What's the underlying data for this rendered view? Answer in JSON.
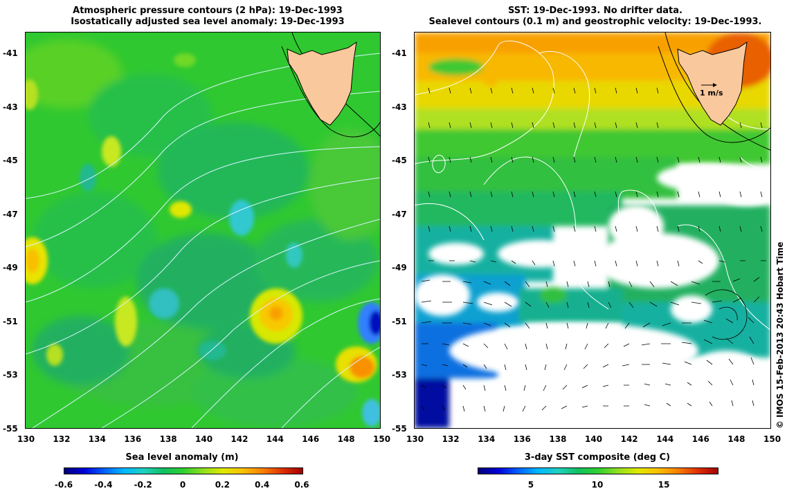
{
  "left_map": {
    "title_line1": "Atmospheric pressure contours (2 hPa): 19-Dec-1993",
    "title_line2": "Isostatically adjusted sea level anomaly: 19-Dec-1993",
    "x_ticks": [
      "130",
      "132",
      "134",
      "136",
      "138",
      "140",
      "142",
      "144",
      "146",
      "148",
      "150"
    ],
    "y_ticks": [
      "-41",
      "-43",
      "-45",
      "-47",
      "-49",
      "-51",
      "-53",
      "-55"
    ],
    "colorbar_label": "Sea level anomaly (m)",
    "colorbar_ticks": [
      "-0.6",
      "-0.4",
      "-0.2",
      "0",
      "0.2",
      "0.4",
      "0.6"
    ],
    "colorbar_range": [
      -0.6,
      0.6
    ],
    "land_color": "#f9c89c",
    "ocean_base_color": "#30c830",
    "contour_color": "#d8f4ff"
  },
  "right_map": {
    "title_line1": "SST: 19-Dec-1993. No drifter data.",
    "title_line2": "Sealevel contours (0.1 m) and geostrophic velocity: 19-Dec-1993.",
    "x_ticks": [
      "130",
      "132",
      "134",
      "136",
      "138",
      "140",
      "142",
      "144",
      "146",
      "148",
      "150"
    ],
    "y_ticks": [
      "-41",
      "-43",
      "-45",
      "-47",
      "-49",
      "-51",
      "-53",
      "-55"
    ],
    "scale_arrow_label": "1 m/s",
    "colorbar_label": "3-day SST composite (deg C)",
    "colorbar_ticks": [
      "5",
      "10",
      "15"
    ],
    "colorbar_range": [
      1,
      19
    ],
    "land_color": "#f9c89c"
  },
  "extent": {
    "lon_min": 130,
    "lon_max": 150,
    "lat_min": -55,
    "lat_max": -40.2
  },
  "copyright": "© IMOS 15-Feb-2013 20:43 Hobart Time",
  "icons": [
    "velocity-arrow-icon"
  ]
}
